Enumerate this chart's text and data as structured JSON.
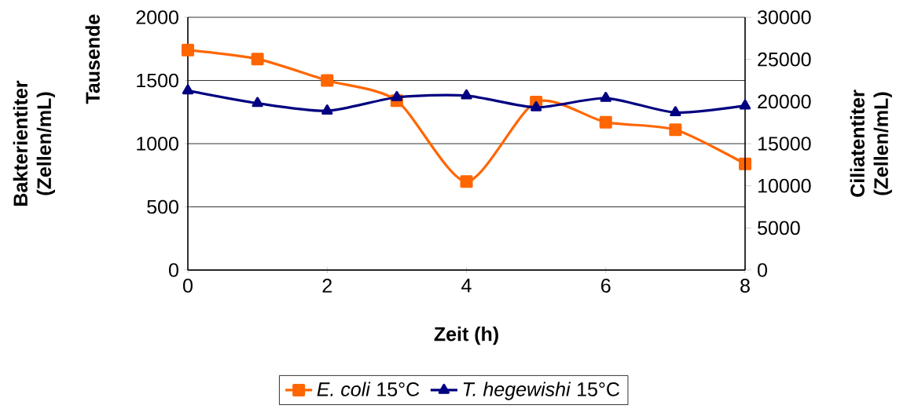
{
  "chart_data": {
    "type": "line",
    "xlabel": "Zeit (h)",
    "ylabel": "Bakterientiter (Zellen/mL)",
    "y2label": "Ciliatentiter (Zellen/mL)",
    "annotations": [
      "Tausende"
    ],
    "x": [
      0,
      1,
      2,
      3,
      4,
      5,
      6,
      7,
      8
    ],
    "series": [
      {
        "name": "*E. coli* 15°C",
        "color": "#ff6600",
        "marker": "square",
        "values": [
          1740,
          1670,
          1500,
          1340,
          700,
          1330,
          1170,
          1110,
          840
        ]
      },
      {
        "name": "*T. hegewishi* 15°C",
        "color": "#000080",
        "marker": "triangle",
        "axis": "y2",
        "values": [
          21300,
          19800,
          18900,
          20500,
          20700,
          19300,
          20400,
          18700,
          19500
        ]
      }
    ],
    "xlim": [
      0,
      8
    ],
    "xticks": [
      0,
      2,
      4,
      6,
      8
    ],
    "ylim": [
      0,
      2000
    ],
    "yticks": [
      0,
      500,
      1000,
      1500,
      2000
    ],
    "y2lim": [
      0,
      30000
    ],
    "y2ticks": [
      0,
      5000,
      10000,
      15000,
      20000,
      25000,
      30000
    ],
    "grid": "y",
    "legend": "bottom"
  }
}
